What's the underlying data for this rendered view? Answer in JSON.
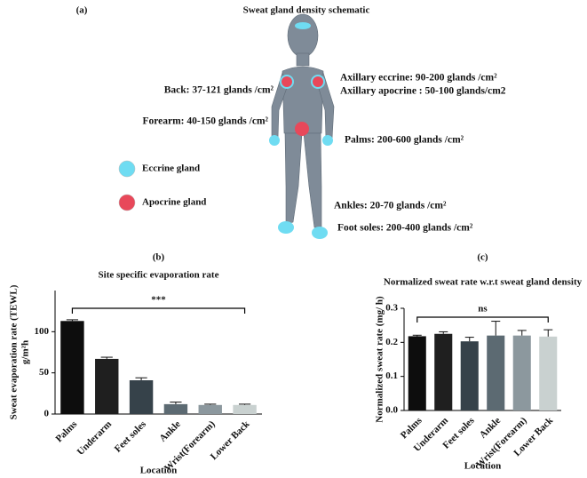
{
  "panel_a": {
    "label": "(a)",
    "title": "Sweat gland density schematic",
    "annotations": [
      "Axillary eccrine: 90-200 glands /cm²",
      "Axillary apocrine : 50-100 glands/cm2",
      "Back: 37-121 glands /cm²",
      "Forearm: 40-150 glands /cm²",
      "Palms: 200-600 glands /cm²",
      "Ankles: 20-70 glands /cm²",
      "Foot soles: 200-400 glands /cm²"
    ],
    "legend": [
      {
        "name": "Eccrine gland",
        "color": "#6fdcf2"
      },
      {
        "name": "Apocrine gland",
        "color": "#e8485a"
      }
    ]
  },
  "chart_data": [
    {
      "type": "bar",
      "panel": "(b)",
      "title": "Site specific evaporation rate",
      "ylabel": "Sweat evaporation rate (TEWL)",
      "ylabel_unit": "g/m²h",
      "xlabel": "Location",
      "categories": [
        "Palms",
        "Underarm",
        "Feet soles",
        "Ankle",
        "Wrist(Forearm)",
        "Lower Back"
      ],
      "values": [
        113,
        67,
        41,
        12,
        11,
        11
      ],
      "errors": [
        1.5,
        2,
        3,
        2.5,
        1,
        1
      ],
      "colors": [
        "#0d0d0d",
        "#1f1f1f",
        "#36424a",
        "#5c6a72",
        "#8c989e",
        "#c9d1d0"
      ],
      "ylim": [
        0,
        150
      ],
      "yticks": [
        0,
        50,
        100
      ],
      "significance": "***"
    },
    {
      "type": "bar",
      "panel": "(c)",
      "title": "Normalized sweat rate w.r.t  sweat gland density",
      "ylabel": "Normalized sweat rate (mg/ h)",
      "xlabel": "Location",
      "categories": [
        "Palms",
        "Underarm",
        "Feet soles",
        "Ankle",
        "Wrist(Forearm)",
        "Lower Back"
      ],
      "values": [
        0.218,
        0.225,
        0.203,
        0.22,
        0.22,
        0.217
      ],
      "errors": [
        0.003,
        0.006,
        0.012,
        0.042,
        0.015,
        0.02
      ],
      "colors": [
        "#0d0d0d",
        "#1f1f1f",
        "#36424a",
        "#5c6a72",
        "#8c989e",
        "#c9d1d0"
      ],
      "ylim": [
        0,
        0.3
      ],
      "yticks": [
        {
          "value": 0,
          "label": "0.0"
        },
        0.1,
        0.2,
        0.3
      ],
      "significance": "ns"
    }
  ]
}
